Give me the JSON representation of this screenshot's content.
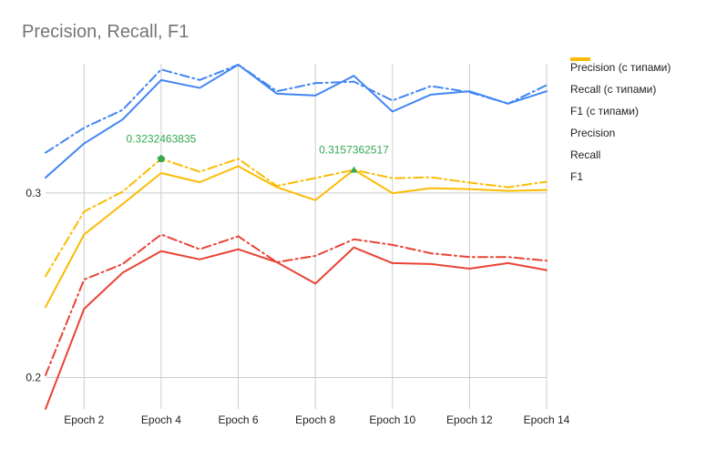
{
  "chart_data": {
    "type": "line",
    "title": "Precision, Recall, F1",
    "xlabel": "",
    "ylabel": "",
    "x": [
      1,
      2,
      3,
      4,
      5,
      6,
      7,
      8,
      9,
      10,
      11,
      12,
      13,
      14
    ],
    "x_tick_labels": [
      "Epoch  2",
      "Epoch  4",
      "Epoch  6",
      "Epoch  8",
      "Epoch  10",
      "Epoch  12",
      "Epoch  14"
    ],
    "x_tick_values": [
      2,
      4,
      6,
      8,
      10,
      12,
      14
    ],
    "y_tick_labels": [
      "0.2",
      "0.3"
    ],
    "y_tick_values": [
      0.2,
      0.3
    ],
    "ylim": [
      0.183,
      0.37
    ],
    "xlim": [
      1,
      14
    ],
    "grid": true,
    "legend_position": "right",
    "series": [
      {
        "name": "Precision (с типами)",
        "color": "#4285f4",
        "dashed": true,
        "values": [
          0.3218,
          0.3353,
          0.345,
          0.3669,
          0.3612,
          0.3695,
          0.3551,
          0.3595,
          0.3603,
          0.3501,
          0.3579,
          0.3546,
          0.3484,
          0.3584
        ]
      },
      {
        "name": "Recall (с типами)",
        "color": "#ea4335",
        "dashed": true,
        "values": [
          0.2013,
          0.2531,
          0.2615,
          0.2775,
          0.2695,
          0.2765,
          0.2625,
          0.2659,
          0.2749,
          0.2719,
          0.2673,
          0.2653,
          0.2653,
          0.2633
        ]
      },
      {
        "name": "F1 (с типами)",
        "color": "#fbbc04",
        "dashed": true,
        "values": [
          0.2549,
          0.2899,
          0.3007,
          0.3185,
          0.3115,
          0.3185,
          0.3038,
          0.3081,
          0.3125,
          0.308,
          0.3085,
          0.3056,
          0.3031,
          0.3061
        ]
      },
      {
        "name": "Precision",
        "color": "#4285f4",
        "dashed": false,
        "values": [
          0.3083,
          0.3268,
          0.3398,
          0.3612,
          0.3569,
          0.3695,
          0.3538,
          0.3528,
          0.3635,
          0.3441,
          0.3533,
          0.3551,
          0.3484,
          0.3551
        ]
      },
      {
        "name": "Recall",
        "color": "#ea4335",
        "dashed": false,
        "values": [
          0.183,
          0.2372,
          0.2568,
          0.2685,
          0.264,
          0.2695,
          0.2625,
          0.2509,
          0.2705,
          0.262,
          0.2615,
          0.259,
          0.262,
          0.2582
        ]
      },
      {
        "name": "F1",
        "color": "#fbbc04",
        "dashed": false,
        "values": [
          0.2382,
          0.2775,
          0.294,
          0.3108,
          0.3058,
          0.3145,
          0.3031,
          0.2961,
          0.3126,
          0.2999,
          0.3026,
          0.3021,
          0.3011,
          0.3016
        ]
      }
    ],
    "annotations": [
      {
        "text": "0.3232463835",
        "x": 4,
        "y": 0.3185,
        "color": "#34a853",
        "marker": "pentagon"
      },
      {
        "text": "0.3157362517",
        "x": 9,
        "y": 0.3125,
        "color": "#34a853",
        "marker": "triangle"
      }
    ]
  }
}
